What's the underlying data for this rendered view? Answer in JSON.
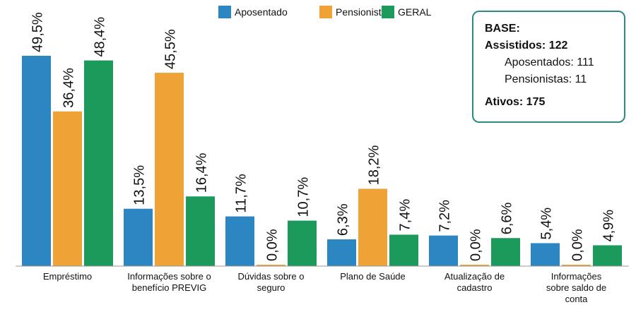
{
  "chart_data": {
    "type": "bar",
    "categories": [
      "Empréstimo",
      "Informações sobre o benefício PREVIG",
      "Dúvidas sobre o seguro",
      "Plano de Saúde",
      "Atualização de cadastro",
      "Informações sobre saldo de conta"
    ],
    "series": [
      {
        "name": "Aposentado",
        "color": "#2b86c2",
        "values": [
          49.5,
          13.5,
          11.7,
          6.3,
          7.2,
          5.4
        ],
        "value_labels": [
          "49,5%",
          "13,5%",
          "11,7%",
          "6,3%",
          "7,2%",
          "5,4%"
        ]
      },
      {
        "name": "Pensionista",
        "color": "#efa236",
        "values": [
          36.4,
          45.5,
          0.0,
          18.2,
          0.0,
          0.0
        ],
        "value_labels": [
          "36,4%",
          "45,5%",
          "0,0%",
          "18,2%",
          "0,0%",
          "0,0%"
        ]
      },
      {
        "name": "GERAL",
        "color": "#1b9a5c",
        "values": [
          48.4,
          16.4,
          10.7,
          7.4,
          6.6,
          4.9
        ],
        "value_labels": [
          "48,4%",
          "16,4%",
          "10,7%",
          "7,4%",
          "6,6%",
          "4,9%"
        ]
      }
    ],
    "annotations": [
      "BASE:",
      "Assistidos: 122",
      "Aposentados: 111",
      "Pensionistas: 11",
      "Ativos: 175"
    ]
  }
}
